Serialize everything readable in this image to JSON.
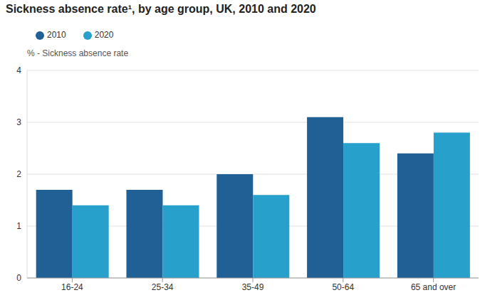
{
  "chart_data": {
    "type": "bar",
    "title": "Sickness absence rate¹, by age group, UK, 2010 and 2020",
    "y_label": "% - Sickness absence rate",
    "categories": [
      "16-24",
      "25-34",
      "35-49",
      "50-64",
      "65 and over"
    ],
    "series": [
      {
        "name": "2010",
        "color": "#206095",
        "values": [
          1.7,
          1.7,
          2.0,
          3.1,
          2.4
        ]
      },
      {
        "name": "2020",
        "color": "#27a0cc",
        "values": [
          1.4,
          1.4,
          1.6,
          2.6,
          2.8
        ]
      }
    ],
    "ylim": [
      0,
      4
    ],
    "yticks": [
      0,
      1,
      2,
      3,
      4
    ],
    "grid": true,
    "legend": "top-left"
  }
}
